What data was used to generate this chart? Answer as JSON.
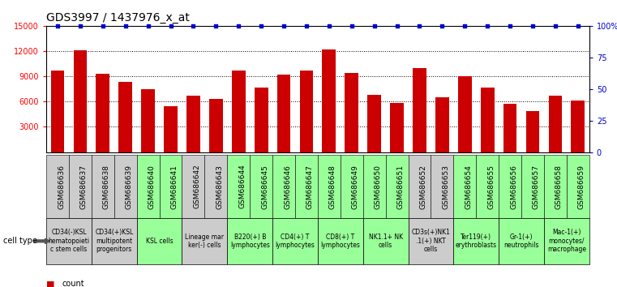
{
  "title": "GDS3997 / 1437976_x_at",
  "gsm_labels": [
    "GSM686636",
    "GSM686637",
    "GSM686638",
    "GSM686639",
    "GSM686640",
    "GSM686641",
    "GSM686642",
    "GSM686643",
    "GSM686644",
    "GSM686645",
    "GSM686646",
    "GSM686647",
    "GSM686648",
    "GSM686649",
    "GSM686650",
    "GSM686651",
    "GSM686652",
    "GSM686653",
    "GSM686654",
    "GSM686655",
    "GSM686656",
    "GSM686657",
    "GSM686658",
    "GSM686659"
  ],
  "counts": [
    9700,
    12100,
    9300,
    8300,
    7500,
    5500,
    6700,
    6300,
    9700,
    7700,
    9200,
    9700,
    12200,
    9400,
    6800,
    5800,
    10000,
    6500,
    9000,
    7700,
    5700,
    4900,
    6700,
    6100
  ],
  "percentiles": [
    100,
    100,
    100,
    100,
    100,
    100,
    100,
    100,
    100,
    100,
    100,
    100,
    100,
    100,
    100,
    100,
    100,
    100,
    100,
    100,
    100,
    100,
    100,
    100
  ],
  "cell_type_groups": [
    {
      "label": "CD34(-)KSL\nhematopoieti\nc stem cells",
      "start": 0,
      "end": 2,
      "color": "#cccccc"
    },
    {
      "label": "CD34(+)KSL\nmultipotent\nprogenitors",
      "start": 2,
      "end": 4,
      "color": "#cccccc"
    },
    {
      "label": "KSL cells",
      "start": 4,
      "end": 6,
      "color": "#99ff99"
    },
    {
      "label": "Lineage mar\nker(-) cells",
      "start": 6,
      "end": 8,
      "color": "#cccccc"
    },
    {
      "label": "B220(+) B\nlymphocytes",
      "start": 8,
      "end": 10,
      "color": "#99ff99"
    },
    {
      "label": "CD4(+) T\nlymphocytes",
      "start": 10,
      "end": 12,
      "color": "#99ff99"
    },
    {
      "label": "CD8(+) T\nlymphocytes",
      "start": 12,
      "end": 14,
      "color": "#99ff99"
    },
    {
      "label": "NK1.1+ NK\ncells",
      "start": 14,
      "end": 16,
      "color": "#99ff99"
    },
    {
      "label": "CD3s(+)NK1\n.1(+) NKT\ncells",
      "start": 16,
      "end": 18,
      "color": "#cccccc"
    },
    {
      "label": "Ter119(+)\nerythroblasts",
      "start": 18,
      "end": 20,
      "color": "#99ff99"
    },
    {
      "label": "Gr-1(+)\nneutrophils",
      "start": 20,
      "end": 22,
      "color": "#99ff99"
    },
    {
      "label": "Mac-1(+)\nmonocytes/\nmacrophage",
      "start": 22,
      "end": 24,
      "color": "#99ff99"
    }
  ],
  "bar_color": "#cc0000",
  "percentile_color": "#0000cc",
  "ylim_left": [
    0,
    15000
  ],
  "ylim_right": [
    0,
    100
  ],
  "yticks_left": [
    3000,
    6000,
    9000,
    12000,
    15000
  ],
  "yticks_right": [
    0,
    25,
    50,
    75,
    100
  ],
  "yticklabels_left": [
    "3000",
    "6000",
    "9000",
    "12000",
    "15000"
  ],
  "yticklabels_right": [
    "0",
    "25",
    "50",
    "75",
    "100%"
  ],
  "background_color": "#ffffff",
  "title_fontsize": 10,
  "tick_fontsize": 7,
  "cell_type_fontsize": 5.5,
  "gsm_fontsize": 6.5
}
